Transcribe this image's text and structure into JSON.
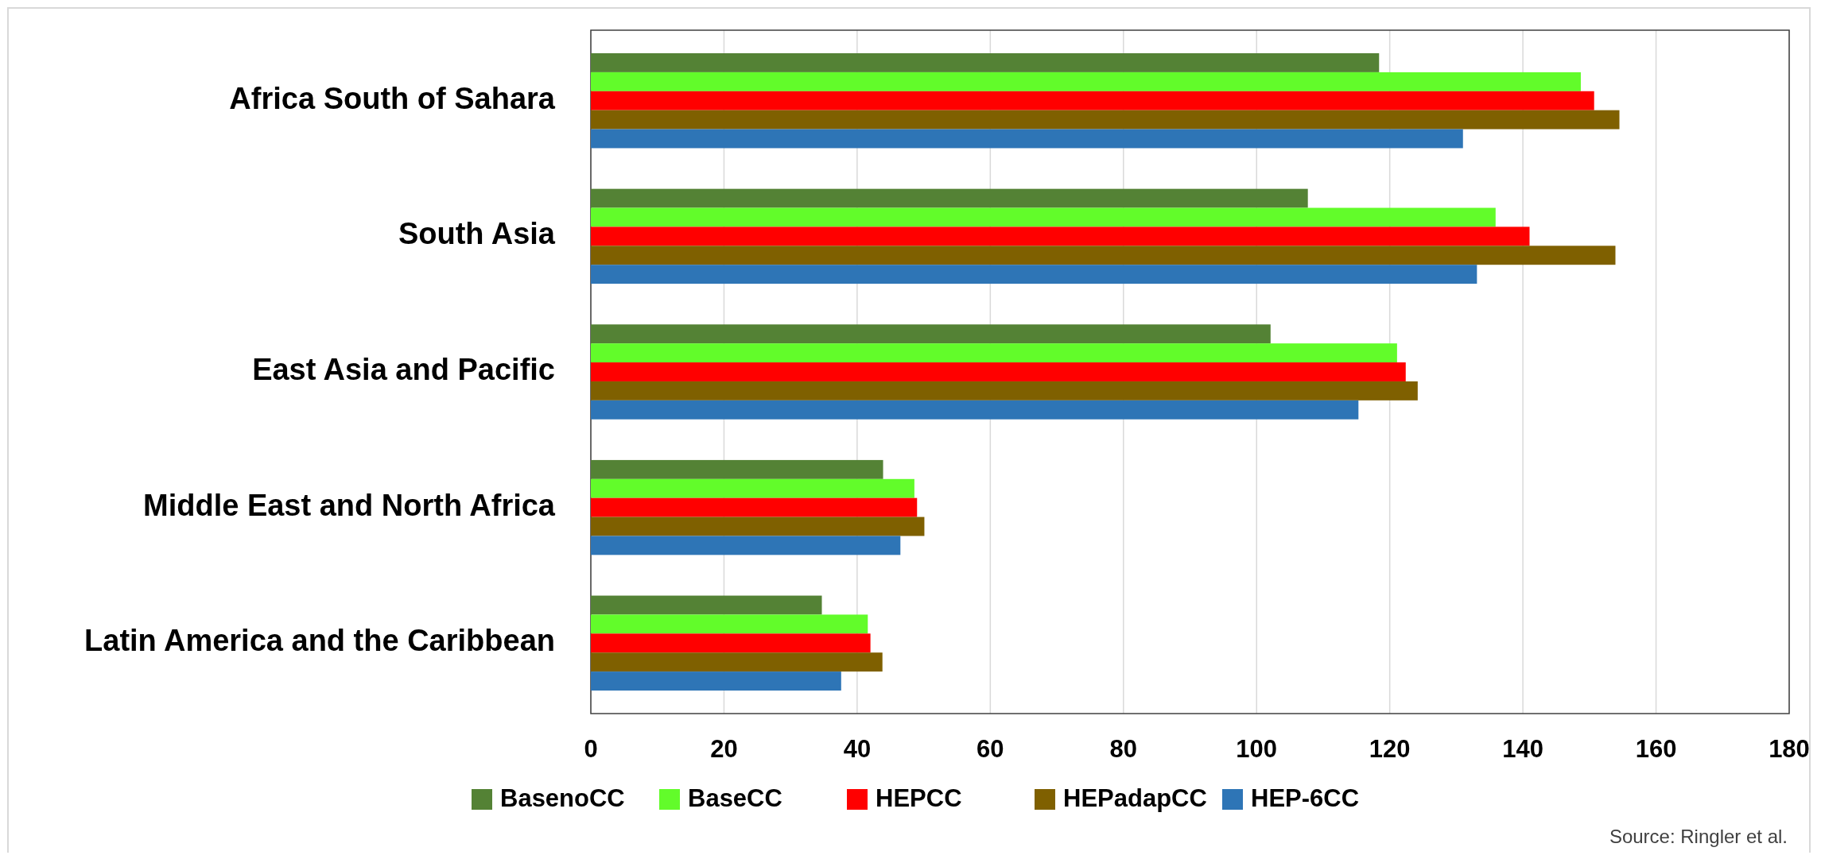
{
  "chart_data": {
    "type": "bar",
    "orientation": "horizontal",
    "categories": [
      "Africa South of Sahara",
      "South Asia",
      "East Asia and Pacific",
      "Middle East and North Africa",
      "Latin America and the Caribbean"
    ],
    "series": [
      {
        "name": "BasenoCC",
        "color": "#548235",
        "values": [
          118.4,
          107.7,
          102.1,
          43.9,
          34.7
        ]
      },
      {
        "name": "BaseCC",
        "color": "#62fc2a",
        "values": [
          148.7,
          135.9,
          121.1,
          48.6,
          41.6
        ]
      },
      {
        "name": "HEPCC",
        "color": "#ff0000",
        "values": [
          150.7,
          141.0,
          122.4,
          49.0,
          42.0
        ]
      },
      {
        "name": "HEPadapCC",
        "color": "#7f6000",
        "values": [
          154.5,
          153.9,
          124.2,
          50.1,
          43.8
        ]
      },
      {
        "name": "HEP-6CC",
        "color": "#2e75b6",
        "values": [
          131.0,
          133.1,
          115.3,
          46.5,
          37.6
        ]
      }
    ],
    "xlim": [
      0,
      180
    ],
    "xticks": [
      0,
      20,
      40,
      60,
      80,
      100,
      120,
      140,
      160,
      180
    ],
    "grid": "x",
    "legend": "bottom",
    "annotations": [
      "Source: Ringler et al."
    ]
  }
}
